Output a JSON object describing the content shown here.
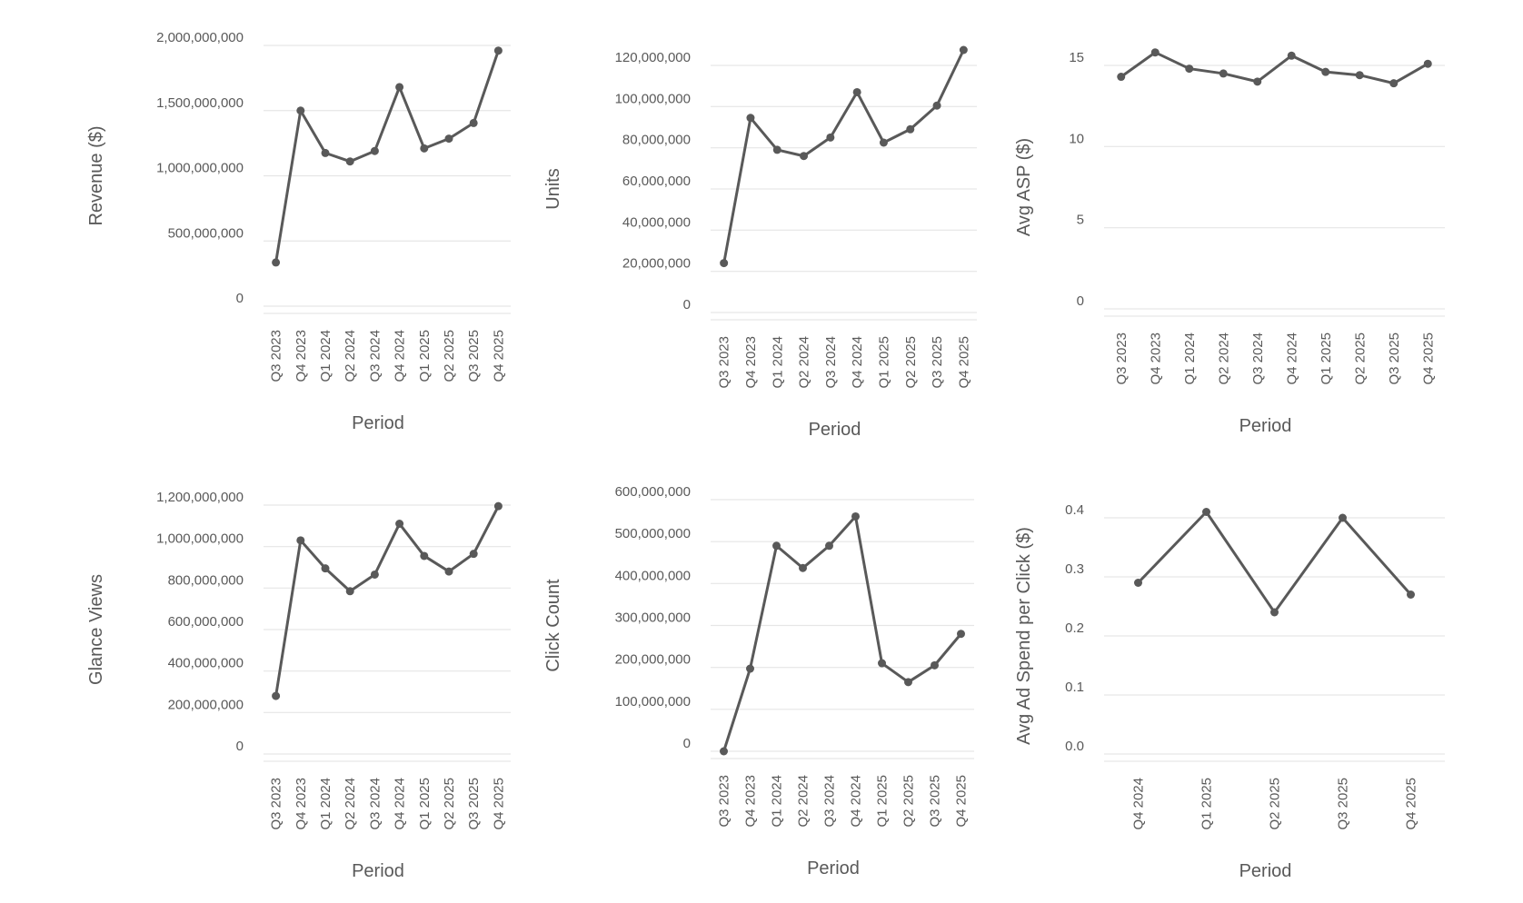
{
  "chart_data": [
    {
      "type": "line",
      "categories": [
        "Q3 2023",
        "Q4 2023",
        "Q1 2024",
        "Q2 2024",
        "Q3 2024",
        "Q4 2024",
        "Q1 2025",
        "Q2 2025",
        "Q3 2025",
        "Q4 2025"
      ],
      "values": [
        335000000,
        1500000000,
        1175000000,
        1110000000,
        1190000000,
        1680000000,
        1210000000,
        1285000000,
        1405000000,
        1960000000
      ],
      "xlabel": "Period",
      "ylabel": "Revenue ($)",
      "ylim": [
        0,
        2000000000
      ],
      "yticks": [
        0,
        500000000,
        1000000000,
        1500000000,
        2000000000
      ],
      "ytick_labels": [
        "0",
        "500,000,000",
        "1,000,000,000",
        "1,500,000,000",
        "2,000,000,000"
      ],
      "grid": true
    },
    {
      "type": "line",
      "categories": [
        "Q3 2023",
        "Q4 2023",
        "Q1 2024",
        "Q2 2024",
        "Q3 2024",
        "Q4 2024",
        "Q1 2025",
        "Q2 2025",
        "Q3 2025",
        "Q4 2025"
      ],
      "values": [
        24000000,
        94500000,
        79000000,
        76000000,
        85000000,
        107000000,
        82500000,
        89000000,
        100500000,
        127500000
      ],
      "xlabel": "Period",
      "ylabel": "Units",
      "ylim": [
        0,
        120000000
      ],
      "yticks": [
        0,
        20000000,
        40000000,
        60000000,
        80000000,
        100000000,
        120000000
      ],
      "ytick_labels": [
        "0",
        "20,000,000",
        "40,000,000",
        "60,000,000",
        "80,000,000",
        "100,000,000",
        "120,000,000"
      ],
      "grid": true
    },
    {
      "type": "line",
      "categories": [
        "Q3 2023",
        "Q4 2023",
        "Q1 2024",
        "Q2 2024",
        "Q3 2024",
        "Q4 2024",
        "Q1 2025",
        "Q2 2025",
        "Q3 2025",
        "Q4 2025"
      ],
      "values": [
        14.3,
        15.8,
        14.8,
        14.5,
        14.0,
        15.6,
        14.6,
        14.4,
        13.9,
        15.1
      ],
      "xlabel": "Period",
      "ylabel": "Avg ASP ($)",
      "ylim": [
        0,
        15
      ],
      "yticks": [
        0,
        5,
        10,
        15
      ],
      "ytick_labels": [
        "0",
        "5",
        "10",
        "15"
      ],
      "grid": true
    },
    {
      "type": "line",
      "categories": [
        "Q3 2023",
        "Q4 2023",
        "Q1 2024",
        "Q2 2024",
        "Q3 2024",
        "Q4 2024",
        "Q1 2025",
        "Q2 2025",
        "Q3 2025",
        "Q4 2025"
      ],
      "values": [
        280000000,
        1030000000,
        895000000,
        785000000,
        865000000,
        1110000000,
        955000000,
        880000000,
        965000000,
        1195000000
      ],
      "xlabel": "Period",
      "ylabel": "Glance Views",
      "ylim": [
        0,
        1200000000
      ],
      "yticks": [
        0,
        200000000,
        400000000,
        600000000,
        800000000,
        1000000000,
        1200000000
      ],
      "ytick_labels": [
        "0",
        "200,000,000",
        "400,000,000",
        "600,000,000",
        "800,000,000",
        "1,000,000,000",
        "1,200,000,000"
      ],
      "grid": true
    },
    {
      "type": "line",
      "categories": [
        "Q3 2023",
        "Q4 2023",
        "Q1 2024",
        "Q2 2024",
        "Q3 2024",
        "Q4 2024",
        "Q1 2025",
        "Q2 2025",
        "Q3 2025",
        "Q4 2025"
      ],
      "values": [
        0,
        197000000,
        490000000,
        437000000,
        490000000,
        560000000,
        210000000,
        165000000,
        205000000,
        280000000
      ],
      "xlabel": "Period",
      "ylabel": "Click Count",
      "ylim": [
        0,
        600000000
      ],
      "yticks": [
        0,
        100000000,
        200000000,
        300000000,
        400000000,
        500000000,
        600000000
      ],
      "ytick_labels": [
        "0",
        "100,000,000",
        "200,000,000",
        "300,000,000",
        "400,000,000",
        "500,000,000",
        "600,000,000"
      ],
      "grid": true
    },
    {
      "type": "line",
      "categories": [
        "Q4 2024",
        "Q1 2025",
        "Q2 2025",
        "Q3 2025",
        "Q4 2025"
      ],
      "values": [
        0.29,
        0.41,
        0.24,
        0.4,
        0.27
      ],
      "xlabel": "Period",
      "ylabel": "Avg Ad Spend per Click ($)",
      "ylim": [
        0,
        0.4
      ],
      "yticks": [
        0,
        0.1,
        0.2,
        0.3,
        0.4
      ],
      "ytick_labels": [
        "0.0",
        "0.1",
        "0.2",
        "0.3",
        "0.4"
      ],
      "grid": true
    }
  ]
}
